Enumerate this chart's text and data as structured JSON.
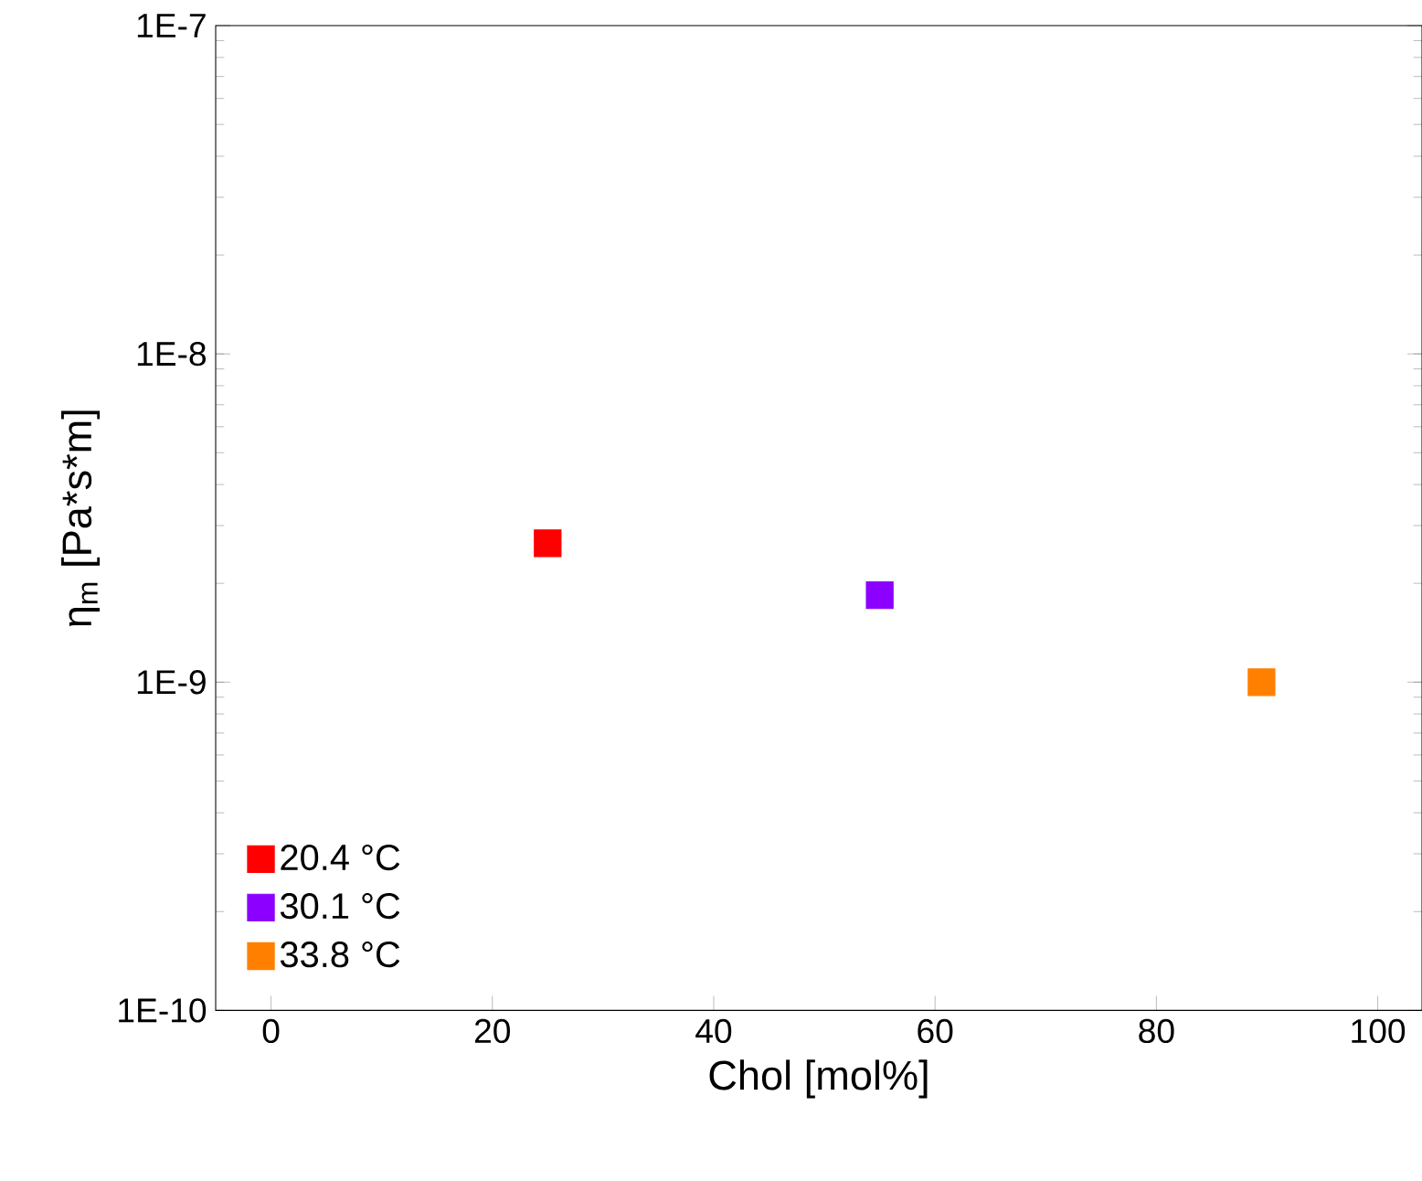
{
  "chart_data": {
    "type": "scatter",
    "xlabel": "Chol [mol%]",
    "ylabel": "η$_{m}$ [Pa*s*m]",
    "log": "y",
    "marker": "square",
    "legend": "bottom left",
    "xlim": [
      -5,
      104
    ],
    "xticks": [
      0,
      20,
      40,
      60,
      80,
      100
    ],
    "ylim": [
      1e-10,
      1e-07
    ],
    "yticks": [
      {
        "value": 1e-10,
        "label": "1E-10"
      },
      {
        "value": 1e-09,
        "label": "1E-9"
      },
      {
        "value": 1e-08,
        "label": "1E-8"
      },
      {
        "value": 1e-07,
        "label": "1E-7"
      }
    ],
    "series": [
      {
        "name": "20.4 °C",
        "color": "#ff0000",
        "x": [
          25
        ],
        "values": [
          2.65e-09
        ]
      },
      {
        "name": "30.1 °C",
        "color": "#8b00ff",
        "x": [
          55
        ],
        "values": [
          1.84e-09
        ]
      },
      {
        "name": "33.8 °C",
        "color": "#ff8000",
        "x": [
          89.5
        ],
        "values": [
          1e-09
        ]
      }
    ]
  }
}
